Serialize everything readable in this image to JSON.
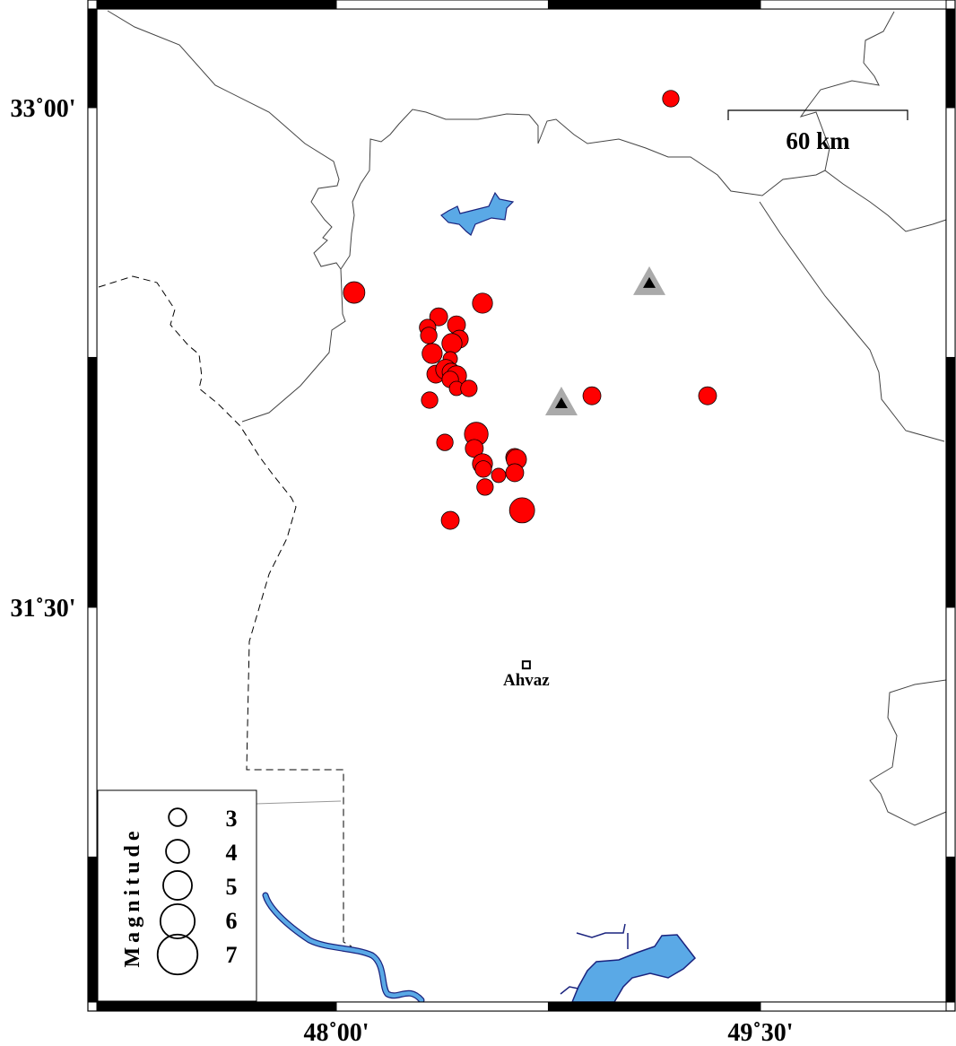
{
  "map": {
    "x_ticks": [
      {
        "lon": 48.0,
        "label": "48˚00'"
      },
      {
        "lon": 49.5,
        "label": "49˚30'"
      }
    ],
    "y_ticks": [
      {
        "lat": 33.0,
        "label": "33˚00'"
      },
      {
        "lat": 31.5,
        "label": "31˚30'"
      }
    ],
    "frame_lon_edges": [
      47.25,
      48.0,
      48.75,
      49.5
    ],
    "frame_lat_edges": [
      33.0,
      32.25,
      31.5,
      30.75
    ],
    "colors": {
      "event": "#ff0000",
      "water": "#5aa9e6",
      "water_outline": "#1a237e",
      "station_outer": "#aaaaaa",
      "station_inner": "#000000"
    }
  },
  "scale_bar": {
    "label": "60 km"
  },
  "city": {
    "name": "Ahvaz",
    "lon": 48.672,
    "lat": 31.327
  },
  "stations": [
    {
      "lon": 49.107,
      "lat": 32.475
    },
    {
      "lon": 48.796,
      "lat": 32.114
    }
  ],
  "events": [
    {
      "lon": 48.517,
      "lat": 32.413,
      "mag": 3.3
    },
    {
      "lon": 48.362,
      "lat": 32.372,
      "mag": 3.0
    },
    {
      "lon": 48.323,
      "lat": 32.34,
      "mag": 2.8
    },
    {
      "lon": 48.327,
      "lat": 32.316,
      "mag": 2.8
    },
    {
      "lon": 48.425,
      "lat": 32.348,
      "mag": 3.0
    },
    {
      "lon": 48.435,
      "lat": 32.305,
      "mag": 3.0
    },
    {
      "lon": 48.409,
      "lat": 32.292,
      "mag": 3.3
    },
    {
      "lon": 48.339,
      "lat": 32.262,
      "mag": 3.3
    },
    {
      "lon": 48.403,
      "lat": 32.246,
      "mag": 2.5
    },
    {
      "lon": 48.352,
      "lat": 32.2,
      "mag": 3.0
    },
    {
      "lon": 48.387,
      "lat": 32.214,
      "mag": 3.3
    },
    {
      "lon": 48.406,
      "lat": 32.206,
      "mag": 3.0
    },
    {
      "lon": 48.425,
      "lat": 32.195,
      "mag": 3.3
    },
    {
      "lon": 48.403,
      "lat": 32.184,
      "mag": 2.8
    },
    {
      "lon": 48.425,
      "lat": 32.157,
      "mag": 2.5
    },
    {
      "lon": 48.469,
      "lat": 32.157,
      "mag": 2.8
    },
    {
      "lon": 48.33,
      "lat": 32.122,
      "mag": 2.8
    },
    {
      "lon": 48.384,
      "lat": 31.995,
      "mag": 2.8
    },
    {
      "lon": 48.495,
      "lat": 32.02,
      "mag": 3.8
    },
    {
      "lon": 48.488,
      "lat": 31.977,
      "mag": 3.0
    },
    {
      "lon": 48.517,
      "lat": 31.931,
      "mag": 3.3
    },
    {
      "lon": 48.52,
      "lat": 31.915,
      "mag": 2.8
    },
    {
      "lon": 48.574,
      "lat": 31.896,
      "mag": 2.5
    },
    {
      "lon": 48.631,
      "lat": 31.95,
      "mag": 3.0
    },
    {
      "lon": 48.637,
      "lat": 31.944,
      "mag": 3.3
    },
    {
      "lon": 48.631,
      "lat": 31.904,
      "mag": 3.0
    },
    {
      "lon": 48.526,
      "lat": 31.861,
      "mag": 2.8
    },
    {
      "lon": 48.657,
      "lat": 31.791,
      "mag": 4.0
    },
    {
      "lon": 48.403,
      "lat": 31.761,
      "mag": 3.0
    },
    {
      "lon": 49.183,
      "lat": 33.027,
      "mag": 2.8
    },
    {
      "lon": 48.063,
      "lat": 32.445,
      "mag": 3.5
    },
    {
      "lon": 48.904,
      "lat": 32.135,
      "mag": 3.0
    },
    {
      "lon": 49.313,
      "lat": 32.135,
      "mag": 3.0
    }
  ],
  "legend": {
    "title": "Magnitude",
    "items": [
      {
        "mag": 3,
        "label": "3"
      },
      {
        "mag": 4,
        "label": "4"
      },
      {
        "mag": 5,
        "label": "5"
      },
      {
        "mag": 6,
        "label": "6"
      },
      {
        "mag": 7,
        "label": "7"
      }
    ]
  }
}
